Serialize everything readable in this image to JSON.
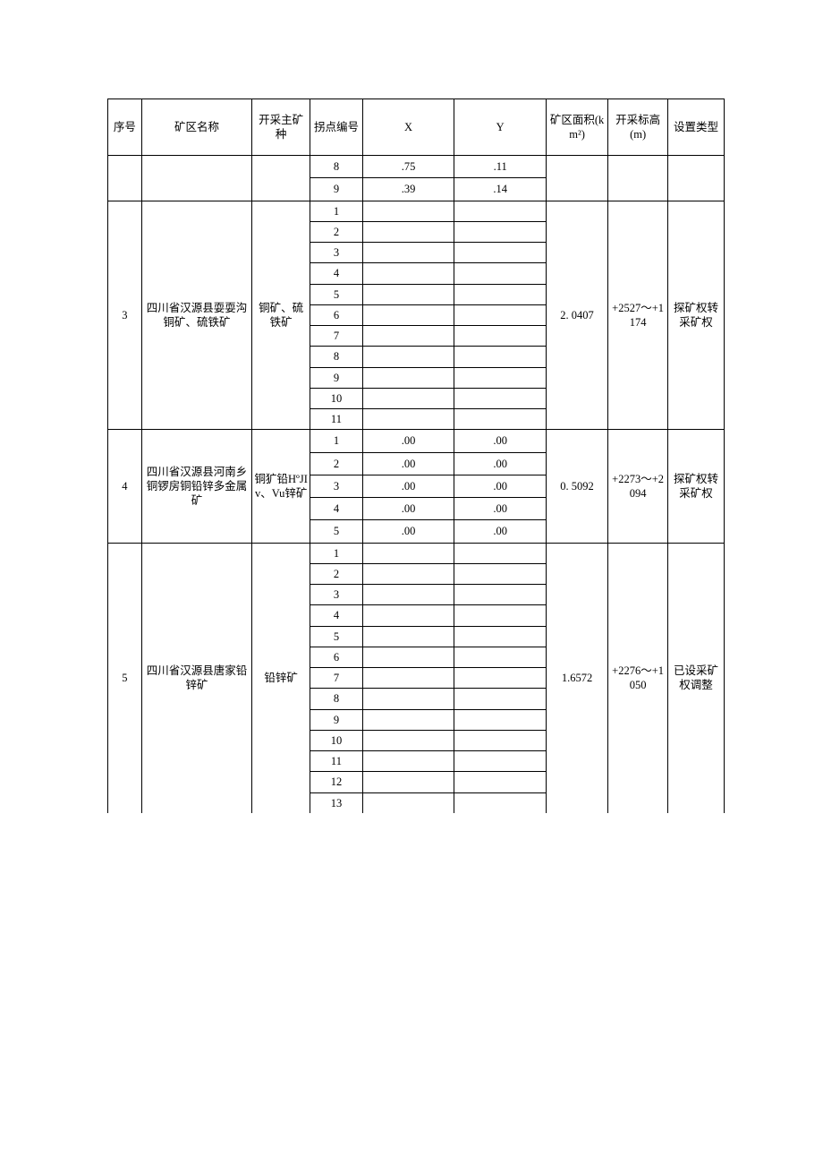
{
  "headers": {
    "idx": "序号",
    "name": "矿区名称",
    "mine": "开采主矿种",
    "pt": "拐点编号",
    "x": "X",
    "y": "Y",
    "area": "矿区面积(km²)",
    "elev": "开采标高(m)",
    "type": "设置类型"
  },
  "carry": {
    "rows": [
      {
        "pt": "8",
        "x": ".75",
        "y": ".11"
      },
      {
        "pt": "9",
        "x": ".39",
        "y": ".14"
      }
    ]
  },
  "groups": [
    {
      "idx": "3",
      "name": "四川省汉源县耍耍沟铜矿、硫铁矿",
      "mine": "铜矿、硫铁矿",
      "area": "2. 0407",
      "elev": "+2527～+1174",
      "type": "探矿权转采矿权",
      "rows": [
        {
          "pt": "1",
          "x": "",
          "y": ""
        },
        {
          "pt": "2",
          "x": "",
          "y": ""
        },
        {
          "pt": "3",
          "x": "",
          "y": ""
        },
        {
          "pt": "4",
          "x": "",
          "y": ""
        },
        {
          "pt": "5",
          "x": "",
          "y": ""
        },
        {
          "pt": "6",
          "x": "",
          "y": ""
        },
        {
          "pt": "7",
          "x": "",
          "y": ""
        },
        {
          "pt": "8",
          "x": "",
          "y": ""
        },
        {
          "pt": "9",
          "x": "",
          "y": ""
        },
        {
          "pt": "10",
          "x": "",
          "y": ""
        },
        {
          "pt": "11",
          "x": "",
          "y": ""
        }
      ]
    },
    {
      "idx": "4",
      "name": "四川省汉源县河南乡铜锣房铜铅锌多金属矿",
      "mine": "铜犷铅HºJIv、Vu锌矿",
      "area": "0. 5092",
      "elev": "+2273～+2094",
      "type": "探矿权转采矿权",
      "rows": [
        {
          "pt": "1",
          "x": ".00",
          "y": ".00"
        },
        {
          "pt": "2",
          "x": ".00",
          "y": ".00"
        },
        {
          "pt": "3",
          "x": ".00",
          "y": ".00"
        },
        {
          "pt": "4",
          "x": ".00",
          "y": ".00"
        },
        {
          "pt": "5",
          "x": ".00",
          "y": ".00"
        }
      ]
    },
    {
      "idx": "5",
      "name": "四川省汉源县唐家铅锌矿",
      "mine": "铅锌矿",
      "area": "1.6572",
      "elev": "+2276～+1050",
      "type": "已设采矿权调整",
      "open_bottom": true,
      "rows": [
        {
          "pt": "1",
          "x": "",
          "y": ""
        },
        {
          "pt": "2",
          "x": "",
          "y": ""
        },
        {
          "pt": "3",
          "x": "",
          "y": ""
        },
        {
          "pt": "4",
          "x": "",
          "y": ""
        },
        {
          "pt": "5",
          "x": "",
          "y": ""
        },
        {
          "pt": "6",
          "x": "",
          "y": ""
        },
        {
          "pt": "7",
          "x": "",
          "y": ""
        },
        {
          "pt": "8",
          "x": "",
          "y": ""
        },
        {
          "pt": "9",
          "x": "",
          "y": ""
        },
        {
          "pt": "10",
          "x": "",
          "y": ""
        },
        {
          "pt": "11",
          "x": "",
          "y": ""
        },
        {
          "pt": "12",
          "x": "",
          "y": ""
        },
        {
          "pt": "13",
          "x": "",
          "y": ""
        }
      ]
    }
  ]
}
